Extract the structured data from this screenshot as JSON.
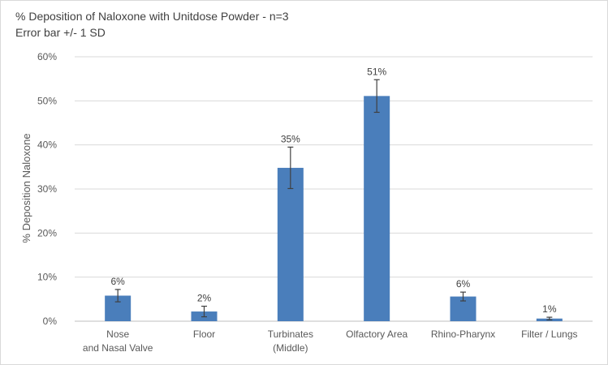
{
  "chart_data": {
    "type": "bar",
    "title": "% Deposition of Naloxone with Unitdose Powder - n=3",
    "subtitle": "Error bar +/- 1 SD",
    "ylabel": "% Deposition Naloxone",
    "xlabel": "",
    "ylim": [
      0,
      60
    ],
    "yticks": [
      0,
      10,
      20,
      30,
      40,
      50,
      60
    ],
    "ytick_labels": [
      "0%",
      "10%",
      "20%",
      "30%",
      "40%",
      "50%",
      "60%"
    ],
    "categories": [
      [
        "Nose",
        "and Nasal Valve"
      ],
      [
        "Floor"
      ],
      [
        "Turbinates",
        "(Middle)"
      ],
      [
        "Olfactory Area"
      ],
      [
        "Rhino-Pharynx"
      ],
      [
        "Filter / Lungs"
      ]
    ],
    "values": [
      5.8,
      2.2,
      34.8,
      51.1,
      5.6,
      0.6
    ],
    "error": [
      1.4,
      1.2,
      4.7,
      3.7,
      1.0,
      0.3
    ],
    "data_labels": [
      "6%",
      "2%",
      "35%",
      "51%",
      "6%",
      "1%"
    ],
    "bar_color": "#4a7ebb",
    "error_bar_color": "#404040",
    "gridlines": true,
    "grid_color": "#d9d9d9",
    "legend": "none"
  }
}
